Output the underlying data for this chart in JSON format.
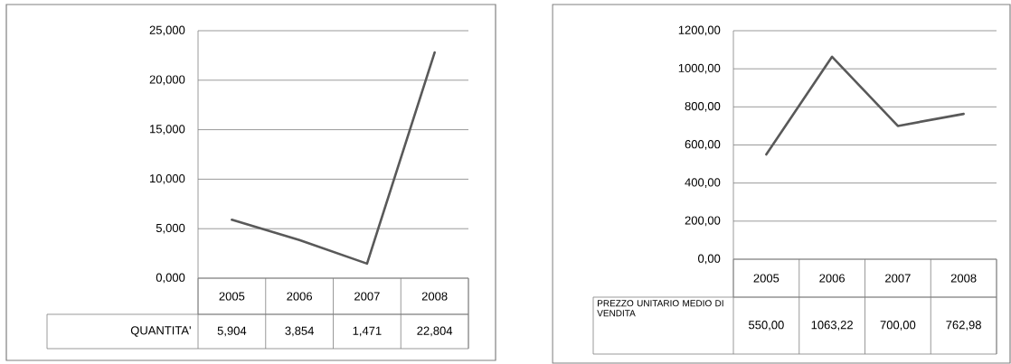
{
  "chart_data": [
    {
      "type": "line",
      "categories": [
        "2005",
        "2006",
        "2007",
        "2008"
      ],
      "series": [
        {
          "name": "QUANTITA'",
          "color": "#595959",
          "values": [
            5.904,
            3.854,
            1.471,
            22.804
          ],
          "value_labels": [
            "5,904",
            "3,854",
            "1,471",
            "22,804"
          ]
        }
      ],
      "ylim": [
        0,
        25
      ],
      "yticks": [
        {
          "value": 0,
          "label": "0,000"
        },
        {
          "value": 5,
          "label": "5,000"
        },
        {
          "value": 10,
          "label": "10,000"
        },
        {
          "value": 15,
          "label": "15,000"
        },
        {
          "value": 20,
          "label": "20,000"
        },
        {
          "value": 25,
          "label": "25,000"
        }
      ],
      "grid": "y"
    },
    {
      "type": "line",
      "categories": [
        "2005",
        "2006",
        "2007",
        "2008"
      ],
      "series": [
        {
          "name": "PREZZO UNITARIO MEDIO DI VENDITA",
          "color": "#595959",
          "values": [
            550.0,
            1063.22,
            700.0,
            762.98
          ],
          "value_labels": [
            "550,00",
            "1063,22",
            "700,00",
            "762,98"
          ]
        }
      ],
      "ylim": [
        0,
        1200
      ],
      "yticks": [
        {
          "value": 0,
          "label": "0,00"
        },
        {
          "value": 200,
          "label": "200,00"
        },
        {
          "value": 400,
          "label": "400,00"
        },
        {
          "value": 600,
          "label": "600,00"
        },
        {
          "value": 800,
          "label": "800,00"
        },
        {
          "value": 1000,
          "label": "1000,00"
        },
        {
          "value": 1200,
          "label": "1200,00"
        }
      ],
      "grid": "y"
    }
  ]
}
